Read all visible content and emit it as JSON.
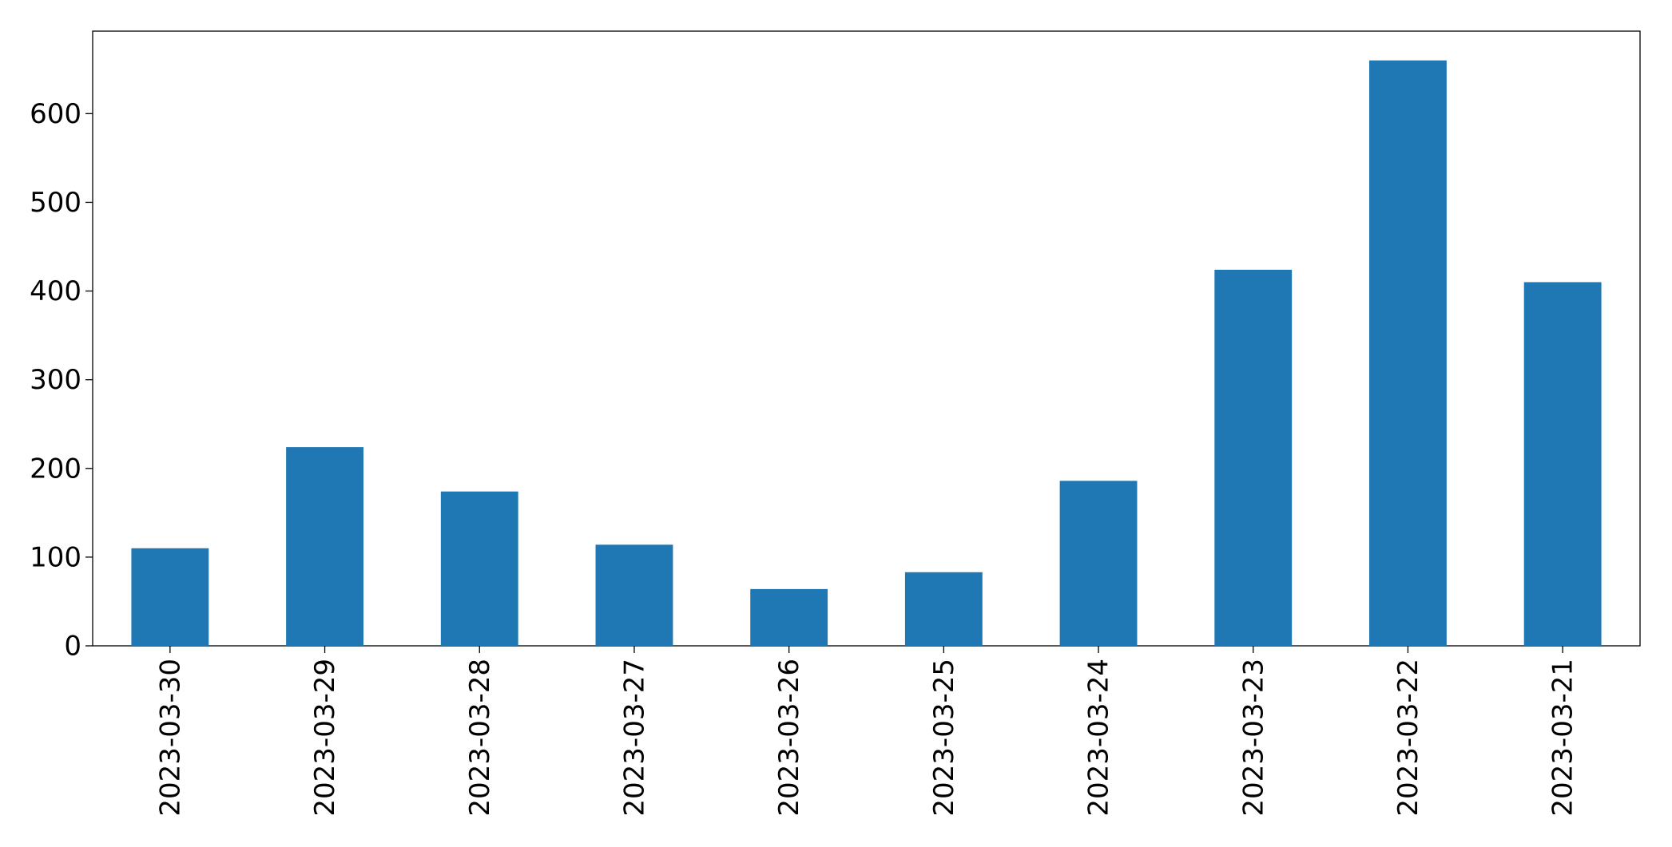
{
  "chart_data": {
    "type": "bar",
    "categories": [
      "2023-03-30",
      "2023-03-29",
      "2023-03-28",
      "2023-03-27",
      "2023-03-26",
      "2023-03-25",
      "2023-03-24",
      "2023-03-23",
      "2023-03-22",
      "2023-03-21"
    ],
    "values": [
      110,
      224,
      174,
      114,
      64,
      83,
      186,
      424,
      660,
      410
    ],
    "color": "#1f77b4",
    "ylim": [
      0,
      693
    ],
    "yticks": [
      0,
      100,
      200,
      300,
      400,
      500,
      600
    ],
    "grid": false
  }
}
